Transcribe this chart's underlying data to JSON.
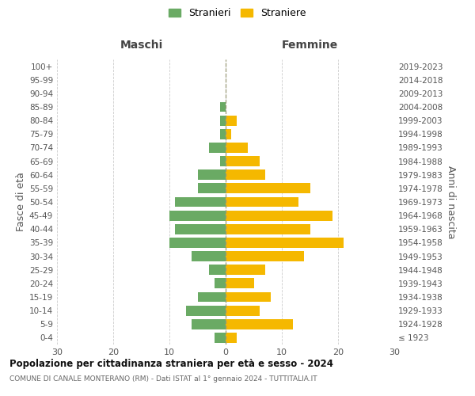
{
  "age_groups": [
    "100+",
    "95-99",
    "90-94",
    "85-89",
    "80-84",
    "75-79",
    "70-74",
    "65-69",
    "60-64",
    "55-59",
    "50-54",
    "45-49",
    "40-44",
    "35-39",
    "30-34",
    "25-29",
    "20-24",
    "15-19",
    "10-14",
    "5-9",
    "0-4"
  ],
  "birth_years": [
    "≤ 1923",
    "1924-1928",
    "1929-1933",
    "1934-1938",
    "1939-1943",
    "1944-1948",
    "1949-1953",
    "1954-1958",
    "1959-1963",
    "1964-1968",
    "1969-1973",
    "1974-1978",
    "1979-1983",
    "1984-1988",
    "1989-1993",
    "1994-1998",
    "1999-2003",
    "2004-2008",
    "2009-2013",
    "2014-2018",
    "2019-2023"
  ],
  "males": [
    0,
    0,
    0,
    1,
    1,
    1,
    3,
    1,
    5,
    5,
    9,
    10,
    9,
    10,
    6,
    3,
    2,
    5,
    7,
    6,
    2
  ],
  "females": [
    0,
    0,
    0,
    0,
    2,
    1,
    4,
    6,
    7,
    15,
    13,
    19,
    15,
    21,
    14,
    7,
    5,
    8,
    6,
    12,
    2
  ],
  "male_color": "#6aaa64",
  "female_color": "#f5b800",
  "bg_color": "#ffffff",
  "grid_color": "#cccccc",
  "dashed_color": "#999977",
  "title": "Popolazione per cittadinanza straniera per età e sesso - 2024",
  "subtitle": "COMUNE DI CANALE MONTERANO (RM) - Dati ISTAT al 1° gennaio 2024 - TUTTITALIA.IT",
  "ylabel_left": "Fasce di età",
  "ylabel_right": "Anni di nascita",
  "legend_stranieri": "Stranieri",
  "legend_straniere": "Straniere",
  "header_maschi": "Maschi",
  "header_femmine": "Femmine",
  "xlim": 30,
  "xticks": [
    -30,
    -20,
    -10,
    0,
    10,
    20,
    30
  ]
}
